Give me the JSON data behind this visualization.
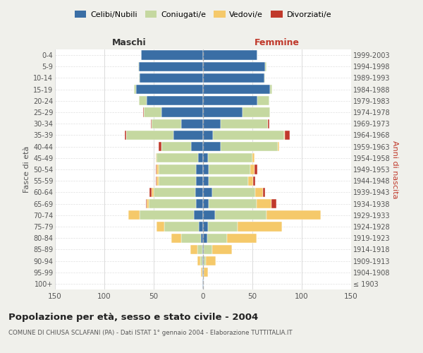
{
  "age_groups": [
    "100+",
    "95-99",
    "90-94",
    "85-89",
    "80-84",
    "75-79",
    "70-74",
    "65-69",
    "60-64",
    "55-59",
    "50-54",
    "45-49",
    "40-44",
    "35-39",
    "30-34",
    "25-29",
    "20-24",
    "15-19",
    "10-14",
    "5-9",
    "0-4"
  ],
  "birth_years": [
    "≤ 1903",
    "1904-1908",
    "1909-1913",
    "1914-1918",
    "1919-1923",
    "1924-1928",
    "1929-1933",
    "1934-1938",
    "1939-1943",
    "1944-1948",
    "1949-1953",
    "1954-1958",
    "1959-1963",
    "1964-1968",
    "1969-1973",
    "1974-1978",
    "1979-1983",
    "1984-1988",
    "1989-1993",
    "1994-1998",
    "1999-2003"
  ],
  "maschi": {
    "celibi": [
      1,
      1,
      1,
      1,
      2,
      4,
      9,
      7,
      8,
      7,
      7,
      5,
      12,
      30,
      22,
      42,
      57,
      68,
      64,
      65,
      63
    ],
    "coniugati": [
      0,
      0,
      2,
      5,
      20,
      35,
      55,
      48,
      42,
      38,
      38,
      42,
      30,
      48,
      30,
      18,
      8,
      2,
      1,
      1,
      0
    ],
    "vedovi": [
      0,
      1,
      3,
      7,
      10,
      8,
      12,
      2,
      2,
      2,
      2,
      1,
      0,
      0,
      0,
      0,
      0,
      0,
      0,
      0,
      0
    ],
    "divorziati": [
      0,
      0,
      0,
      0,
      0,
      0,
      0,
      1,
      2,
      1,
      1,
      0,
      3,
      1,
      1,
      1,
      0,
      0,
      0,
      0,
      0
    ]
  },
  "femmine": {
    "nubili": [
      1,
      1,
      1,
      1,
      4,
      5,
      12,
      6,
      9,
      6,
      6,
      5,
      18,
      10,
      18,
      40,
      55,
      68,
      62,
      63,
      55
    ],
    "coniugate": [
      0,
      0,
      2,
      8,
      20,
      30,
      52,
      48,
      44,
      40,
      42,
      45,
      58,
      72,
      48,
      28,
      12,
      2,
      1,
      1,
      0
    ],
    "vedove": [
      0,
      4,
      10,
      20,
      30,
      45,
      55,
      15,
      8,
      5,
      4,
      2,
      1,
      1,
      0,
      0,
      0,
      0,
      0,
      0,
      0
    ],
    "divorziate": [
      0,
      0,
      0,
      0,
      0,
      0,
      0,
      5,
      2,
      2,
      3,
      0,
      0,
      5,
      1,
      0,
      0,
      0,
      0,
      0,
      0
    ]
  },
  "colors": {
    "celibi": "#3A6EA5",
    "coniugati": "#C5D8A0",
    "vedovi": "#F5C96A",
    "divorziati": "#C0392B"
  },
  "xlim": 150,
  "title": "Popolazione per età, sesso e stato civile - 2004",
  "subtitle": "COMUNE DI CHIUSA SCLAFANI (PA) - Dati ISTAT 1° gennaio 2004 - Elaborazione TUTTITALIA.IT",
  "ylabel": "Fasce di età",
  "ylabel_right": "Anni di nascita",
  "xlabel_left": "Maschi",
  "xlabel_right": "Femmine",
  "bg_color": "#f0f0eb",
  "plot_bg_color": "#ffffff"
}
